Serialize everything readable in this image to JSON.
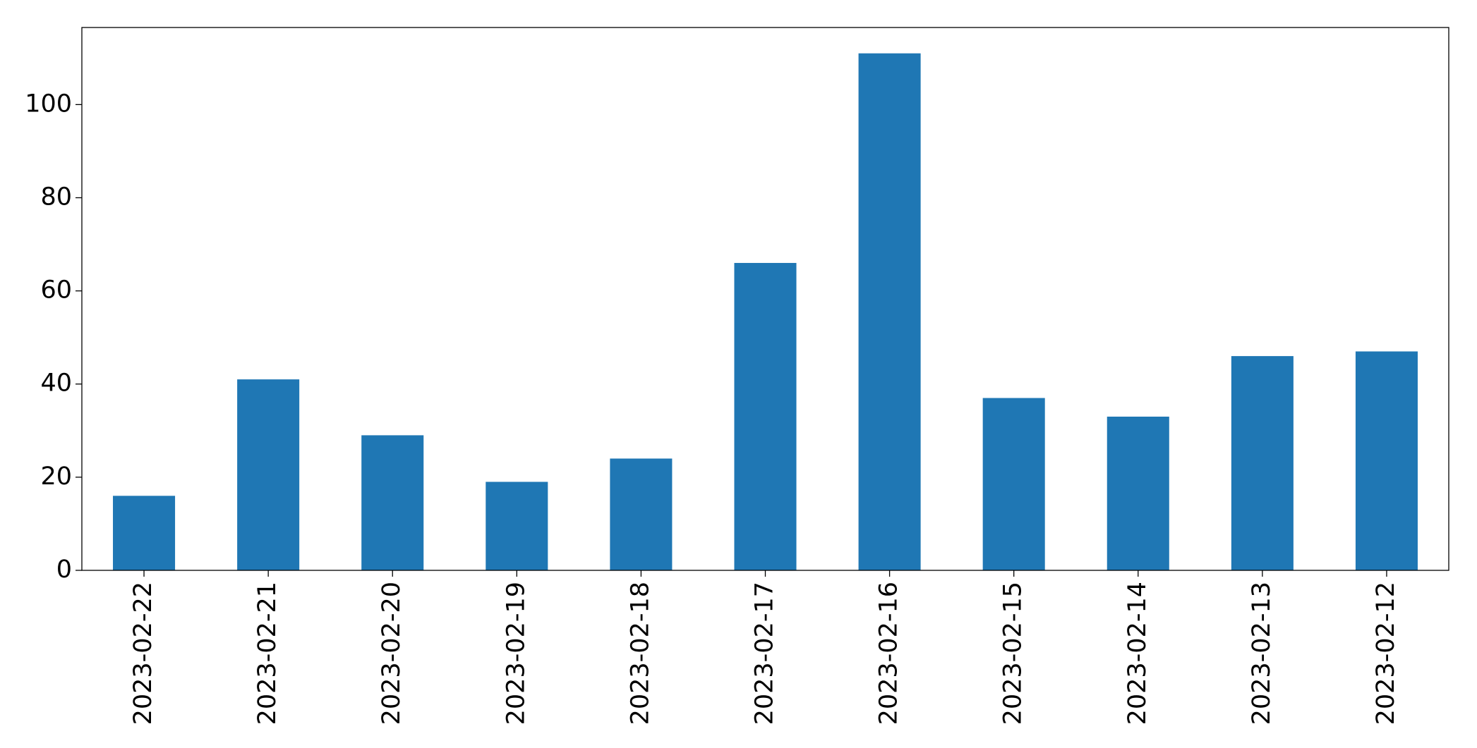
{
  "chart_data": {
    "type": "bar",
    "categories": [
      "2023-02-22",
      "2023-02-21",
      "2023-02-20",
      "2023-02-19",
      "2023-02-18",
      "2023-02-17",
      "2023-02-16",
      "2023-02-15",
      "2023-02-14",
      "2023-02-13",
      "2023-02-12"
    ],
    "values": [
      16,
      41,
      29,
      19,
      24,
      66,
      111,
      37,
      33,
      46,
      47
    ],
    "color": "#1f77b4",
    "ylim": [
      0,
      116.55
    ],
    "yticks": [
      0,
      20,
      40,
      60,
      80,
      100
    ],
    "grid": false
  }
}
